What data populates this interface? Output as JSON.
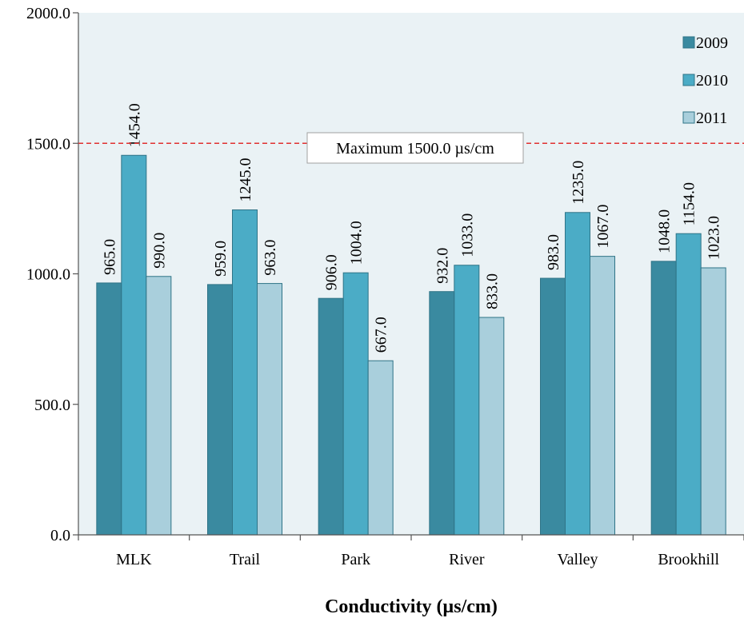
{
  "chart_data": {
    "type": "bar",
    "title": "",
    "xlabel": "Conductivity (µs/cm)",
    "ylabel": "",
    "ylim": [
      0,
      2000
    ],
    "yticks": [
      "0.0",
      "500.0",
      "1000.0",
      "1500.0",
      "2000.0"
    ],
    "categories": [
      "MLK",
      "Trail",
      "Park",
      "River",
      "Valley",
      "Brookhill"
    ],
    "series": [
      {
        "name": "2009",
        "color": "#3a8aa0",
        "values": [
          965.0,
          959.0,
          906.0,
          932.0,
          983.0,
          1048.0
        ]
      },
      {
        "name": "2010",
        "color": "#4bacc6",
        "values": [
          1454.0,
          1245.0,
          1004.0,
          1033.0,
          1235.0,
          1154.0
        ]
      },
      {
        "name": "2011",
        "color": "#a9cfdc",
        "values": [
          990.0,
          963.0,
          667.0,
          833.0,
          1067.0,
          1023.0
        ]
      }
    ],
    "data_labels": [
      [
        "965.0",
        "959.0",
        "906.0",
        "932.0",
        "983.0",
        "1048.0"
      ],
      [
        "1454.0",
        "1245.0",
        "1004.0",
        "1033.0",
        "1235.0",
        "1154.0"
      ],
      [
        "990.0",
        "963.0",
        "667.0",
        "833.0",
        "1067.0",
        "1023.0"
      ]
    ],
    "reference_line": {
      "value": 1500.0,
      "label": "Maximum 1500.0 µs/cm",
      "color": "#e03030",
      "style": "dashed"
    },
    "legend_position": "top-right",
    "plot_background": "#eaf2f5",
    "grid": false
  }
}
